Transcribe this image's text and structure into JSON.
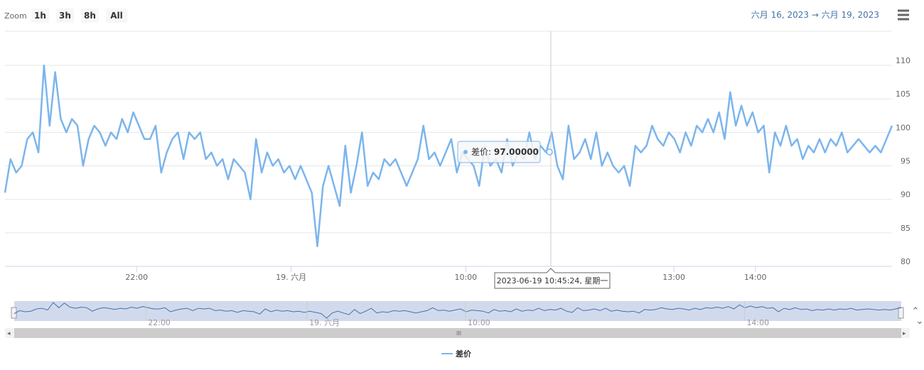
{
  "chart_data": {
    "type": "line",
    "zoom_label": "Zoom",
    "zoom_buttons": [
      "1h",
      "3h",
      "8h",
      "All"
    ],
    "range_from": "六月 16, 2023",
    "range_arrow": "→",
    "range_to": "六月 19, 2023",
    "series": [
      {
        "name": "差价",
        "color": "#7cb5ec",
        "values": [
          91,
          96,
          94,
          95,
          99,
          100,
          97,
          110,
          101,
          109,
          102,
          100,
          102,
          101,
          95,
          99,
          101,
          100,
          98,
          100,
          99,
          102,
          100,
          103,
          101,
          99,
          99,
          101,
          94,
          97,
          99,
          100,
          96,
          100,
          99,
          100,
          96,
          97,
          95,
          96,
          93,
          96,
          95,
          94,
          90,
          99,
          94,
          97,
          95,
          96,
          94,
          95,
          93,
          95,
          93,
          91,
          83,
          92,
          95,
          92,
          89,
          98,
          91,
          95,
          100,
          92,
          94,
          93,
          96,
          95,
          96,
          94,
          92,
          94,
          96,
          101,
          96,
          97,
          95,
          97,
          99,
          94,
          97,
          96,
          95,
          92,
          98,
          95,
          96,
          94,
          99,
          95,
          97,
          96,
          100,
          96,
          98,
          97,
          100,
          95,
          93,
          101,
          96,
          97,
          99,
          96,
          100,
          95,
          97,
          95,
          94,
          95,
          92,
          98,
          97,
          98,
          101,
          99,
          98,
          100,
          99,
          97,
          100,
          98,
          101,
          100,
          102,
          100,
          103,
          99,
          106,
          101,
          104,
          101,
          103,
          100,
          101,
          94,
          100,
          98,
          101,
          98,
          99,
          96,
          98,
          97,
          99,
          97,
          99,
          98,
          100,
          97,
          98,
          99,
          98,
          97,
          98,
          97,
          99,
          101
        ]
      }
    ],
    "xlim": [
      0,
      159
    ],
    "xticks": [
      {
        "value": 23.6,
        "label": "22:00"
      },
      {
        "value": 51.3,
        "label": "19. 六月"
      },
      {
        "value": 82.6,
        "label": "10:00"
      },
      {
        "value": 119.9,
        "label": "13:00"
      },
      {
        "value": 134.5,
        "label": "14:00"
      }
    ],
    "navigator_xticks": [
      {
        "value": 23.6,
        "label": "22:00"
      },
      {
        "value": 52.5,
        "label": "19. 六月"
      },
      {
        "value": 80.9,
        "label": "10:00"
      },
      {
        "value": 130.9,
        "label": "14:00"
      }
    ],
    "ylim": [
      80,
      115.1
    ],
    "yticks": [
      80,
      85,
      90,
      95,
      100,
      105,
      110
    ],
    "grid": true,
    "tooltip": {
      "series": "差价",
      "value": "97.00000",
      "time": "2023-06-19 10:45:24, 星期一"
    }
  }
}
